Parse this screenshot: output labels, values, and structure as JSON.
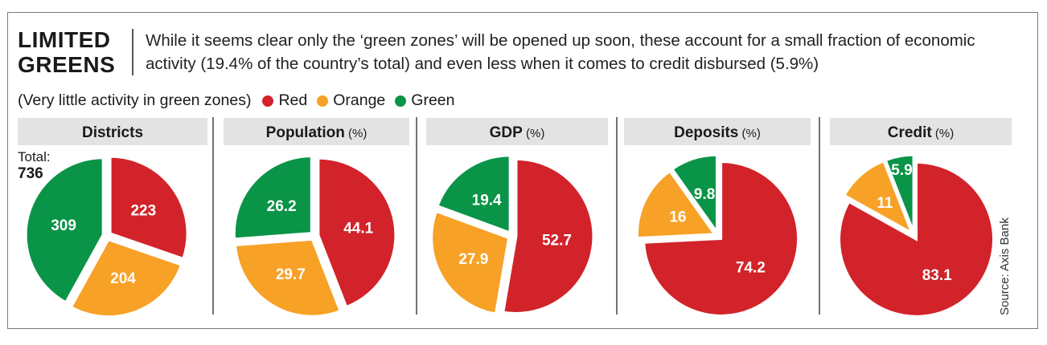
{
  "headline": {
    "line1": "LIMITED",
    "line2": "GREENS"
  },
  "subtitle": "While it seems clear only the ‘green zones’ will be opened up soon, these account for a small fraction of economic activity (19.4% of the country’s total) and even less when it comes to credit disbursed (5.9%)",
  "legend": {
    "note": "(Very little activity in green zones)",
    "items": [
      {
        "label": "Red",
        "color": "#d2232a"
      },
      {
        "label": "Orange",
        "color": "#f7a127"
      },
      {
        "label": "Green",
        "color": "#0a9447"
      }
    ]
  },
  "source": "Source: Axis Bank",
  "total": {
    "label": "Total:",
    "value": "736"
  },
  "chart_data": [
    {
      "type": "pie",
      "title": "Districts",
      "unit": "",
      "slices": [
        {
          "name": "Red",
          "value": 223,
          "label": "223"
        },
        {
          "name": "Orange",
          "value": 204,
          "label": "204"
        },
        {
          "name": "Green",
          "value": 309,
          "label": "309"
        }
      ]
    },
    {
      "type": "pie",
      "title": "Population",
      "unit": "(%)",
      "slices": [
        {
          "name": "Red",
          "value": 44.1,
          "label": "44.1"
        },
        {
          "name": "Orange",
          "value": 29.7,
          "label": "29.7"
        },
        {
          "name": "Green",
          "value": 26.2,
          "label": "26.2"
        }
      ]
    },
    {
      "type": "pie",
      "title": "GDP",
      "unit": "(%)",
      "slices": [
        {
          "name": "Red",
          "value": 52.7,
          "label": "52.7"
        },
        {
          "name": "Orange",
          "value": 27.9,
          "label": "27.9"
        },
        {
          "name": "Green",
          "value": 19.4,
          "label": "19.4"
        }
      ]
    },
    {
      "type": "pie",
      "title": "Deposits",
      "unit": "(%)",
      "slices": [
        {
          "name": "Red",
          "value": 74.2,
          "label": "74.2"
        },
        {
          "name": "Orange",
          "value": 16,
          "label": "16"
        },
        {
          "name": "Green",
          "value": 9.8,
          "label": "9.8"
        }
      ]
    },
    {
      "type": "pie",
      "title": "Credit",
      "unit": "(%)",
      "slices": [
        {
          "name": "Red",
          "value": 83.1,
          "label": "83.1"
        },
        {
          "name": "Orange",
          "value": 11,
          "label": "11"
        },
        {
          "name": "Green",
          "value": 5.9,
          "label": "5.9"
        }
      ]
    }
  ]
}
